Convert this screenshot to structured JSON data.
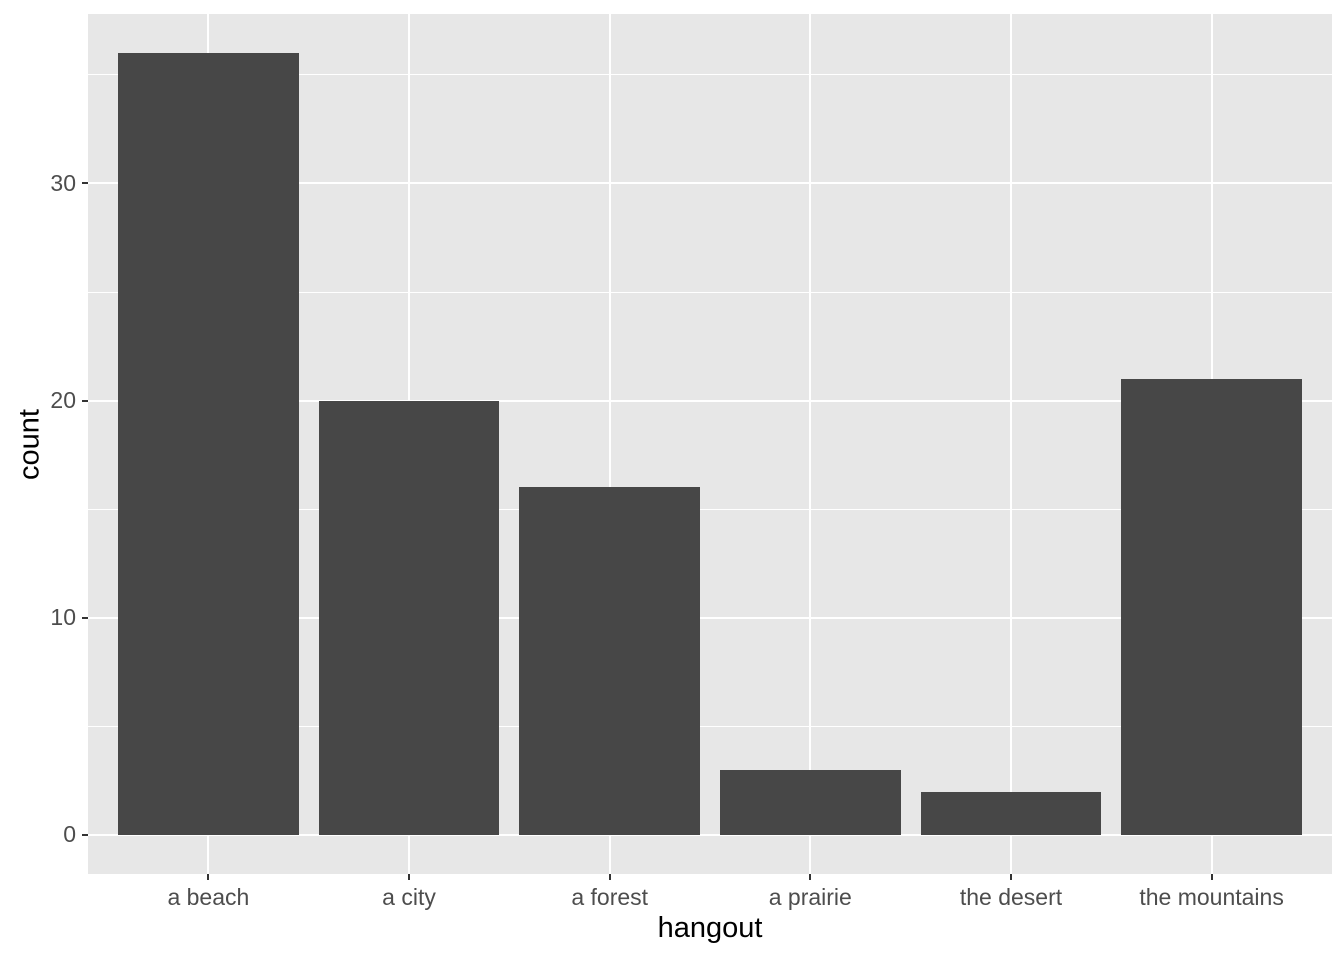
{
  "chart_data": {
    "type": "bar",
    "title": "",
    "xlabel": "hangout",
    "ylabel": "count",
    "categories": [
      "a beach",
      "a city",
      "a forest",
      "a prairie",
      "the desert",
      "the mountains"
    ],
    "values": [
      36,
      20,
      16,
      3,
      2,
      21
    ],
    "ylim": [
      0,
      36
    ],
    "y_major_ticks": [
      0,
      10,
      20,
      30
    ],
    "y_minor_ticks": [
      5,
      15,
      25,
      35
    ],
    "grid": "major and minor horizontal white lines, vertical white lines at category centers",
    "legend_position": "none",
    "theme": "ggplot2 theme_grey",
    "colors": {
      "bar_fill": "#474747",
      "panel_background": "#E7E7E7",
      "gridline": "#FFFFFF",
      "tick_label_text": "#4D4D4D",
      "axis_title_text": "#000000",
      "tick_mark": "#333333",
      "figure_background": "#FFFFFF"
    }
  }
}
